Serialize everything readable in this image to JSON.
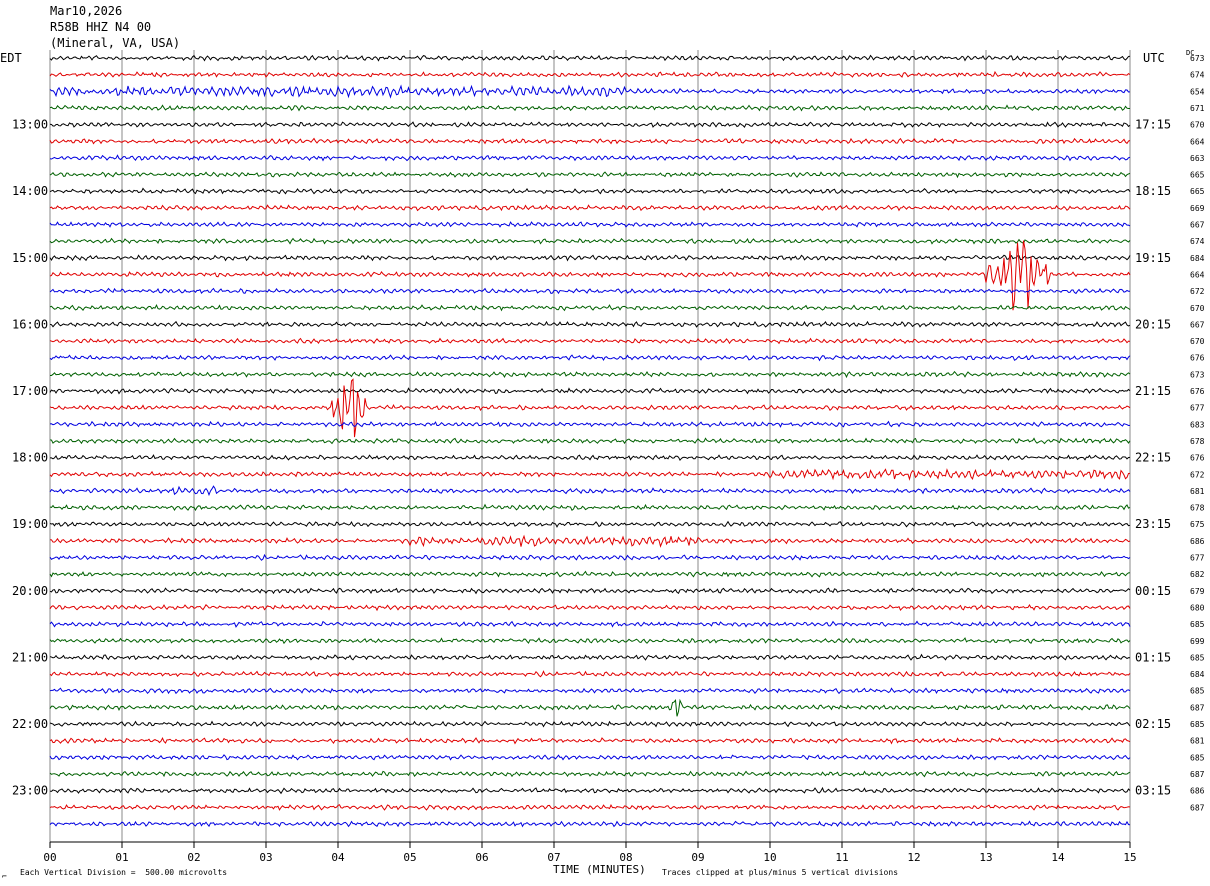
{
  "header": {
    "date": "Mar10,2026",
    "station": "R58B HHZ N4 00",
    "location": "(Mineral, VA, USA)"
  },
  "axis": {
    "left_title": "EDT",
    "right_title": "UTC",
    "right_dc_title": "DC",
    "xlabel": "TIME (MINUTES)",
    "scale_note": "Each Vertical Division =  500.00 microvolts",
    "clip_note": "Traces clipped at plus/minus 5 vertical divisions",
    "corner_glyph": "⌐"
  },
  "chart_data": {
    "type": "line",
    "title": "R58B HHZ N4 00",
    "xlabel": "TIME (MINUTES)",
    "xlim": [
      0,
      15
    ],
    "x_ticks": [
      "00",
      "01",
      "02",
      "03",
      "04",
      "05",
      "06",
      "07",
      "08",
      "09",
      "10",
      "11",
      "12",
      "13",
      "14",
      "15"
    ],
    "grid": true,
    "trace_count": 48,
    "color_cycle": [
      "#000000",
      "#e00000",
      "#0000e0",
      "#006000"
    ],
    "left_hour_labels": [
      {
        "trace": 4,
        "label": "13:00"
      },
      {
        "trace": 8,
        "label": "14:00"
      },
      {
        "trace": 12,
        "label": "15:00"
      },
      {
        "trace": 16,
        "label": "16:00"
      },
      {
        "trace": 20,
        "label": "17:00"
      },
      {
        "trace": 24,
        "label": "18:00"
      },
      {
        "trace": 28,
        "label": "19:00"
      },
      {
        "trace": 32,
        "label": "20:00"
      },
      {
        "trace": 36,
        "label": "21:00"
      },
      {
        "trace": 40,
        "label": "22:00"
      },
      {
        "trace": 44,
        "label": "23:00"
      }
    ],
    "right_hour_labels": [
      {
        "trace": 4,
        "label": "17:15"
      },
      {
        "trace": 8,
        "label": "18:15"
      },
      {
        "trace": 12,
        "label": "19:15"
      },
      {
        "trace": 16,
        "label": "20:15"
      },
      {
        "trace": 20,
        "label": "21:15"
      },
      {
        "trace": 24,
        "label": "22:15"
      },
      {
        "trace": 28,
        "label": "23:15"
      },
      {
        "trace": 32,
        "label": "00:15"
      },
      {
        "trace": 36,
        "label": "01:15"
      },
      {
        "trace": 40,
        "label": "02:15"
      },
      {
        "trace": 44,
        "label": "03:15"
      }
    ],
    "dc_offsets": [
      673,
      674,
      654,
      671,
      670,
      664,
      663,
      665,
      665,
      669,
      667,
      674,
      684,
      664,
      672,
      670,
      667,
      670,
      676,
      673,
      676,
      677,
      683,
      678,
      676,
      672,
      681,
      678,
      675,
      686,
      677,
      682,
      679,
      680,
      685,
      699,
      685,
      684,
      685,
      687,
      685,
      681,
      685,
      687,
      686,
      687
    ],
    "events": [
      {
        "trace": 13,
        "start_min": 13.0,
        "end_min": 13.9,
        "amplitude": "clipped"
      },
      {
        "trace": 21,
        "start_min": 3.9,
        "end_min": 4.4,
        "amplitude": "clipped"
      },
      {
        "trace": 39,
        "start_min": 8.6,
        "end_min": 8.8,
        "amplitude": "medium"
      },
      {
        "trace": 2,
        "start_min": 0.0,
        "end_min": 8.0,
        "amplitude": "small"
      },
      {
        "trace": 26,
        "start_min": 1.7,
        "end_min": 2.3,
        "amplitude": "small"
      },
      {
        "trace": 25,
        "start_min": 10.0,
        "end_min": 15.0,
        "amplitude": "small"
      },
      {
        "trace": 29,
        "start_min": 5.0,
        "end_min": 9.0,
        "amplitude": "small"
      }
    ]
  }
}
